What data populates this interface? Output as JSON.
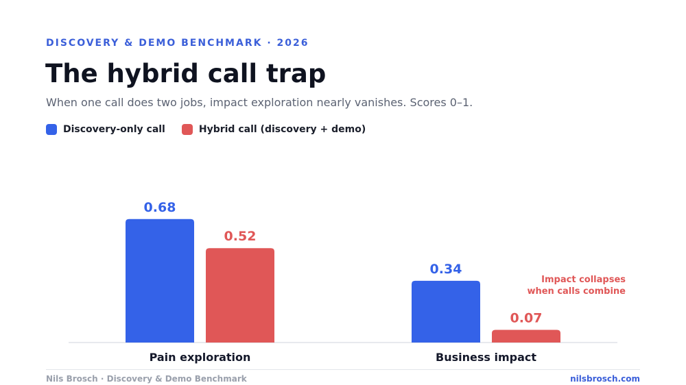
{
  "eyebrow": "DISCOVERY & DEMO BENCHMARK · 2026",
  "colors": {
    "discovery": "#3462e8",
    "hybrid": "#e05757",
    "accent": "#3b5fd9"
  },
  "footer": {
    "left": "Nils Brosch · Discovery & Demo Benchmark",
    "right": "nilsbrosch.com"
  },
  "chart_data": {
    "type": "bar",
    "title": "The hybrid call trap",
    "subtitle": "When one call does two jobs, impact exploration nearly vanishes. Scores 0–1.",
    "categories": [
      "Pain exploration",
      "Business impact"
    ],
    "series": [
      {
        "name": "Discovery-only call",
        "values": [
          0.68,
          0.34
        ],
        "labels": [
          "0.68",
          "0.34"
        ]
      },
      {
        "name": "Hybrid call (discovery + demo)",
        "values": [
          0.52,
          0.07
        ],
        "labels": [
          "0.52",
          "0.07"
        ]
      }
    ],
    "ylim": [
      0,
      1
    ],
    "grid": false,
    "legend_position": "top-left",
    "annotation": {
      "lines": [
        "Impact collapses",
        "when calls combine"
      ],
      "category": "Business impact"
    }
  }
}
